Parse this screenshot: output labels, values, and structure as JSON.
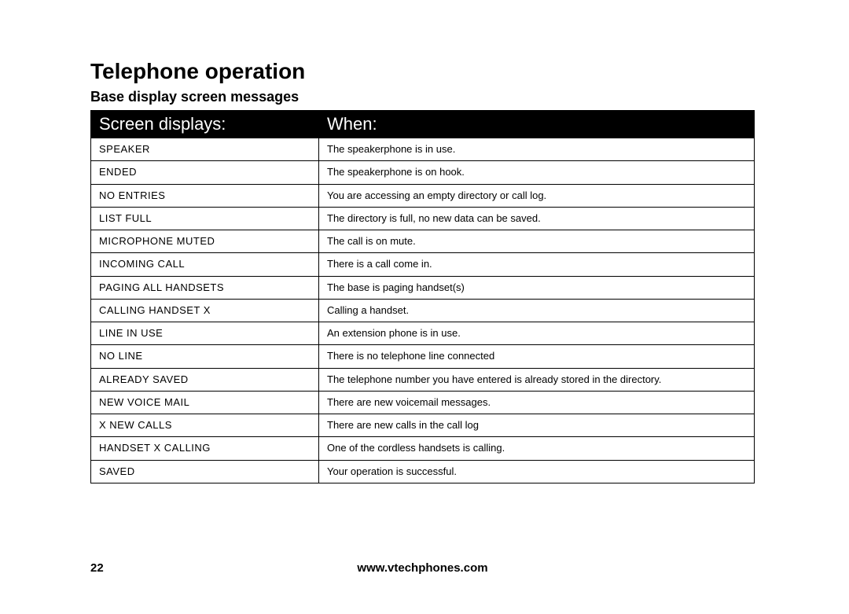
{
  "title": "Telephone operation",
  "subtitle": "Base display screen messages",
  "table": {
    "header": {
      "col1": "Screen displays:",
      "col2": "When:"
    },
    "rows": [
      {
        "c1": "SPEAKER",
        "c2": "The speakerphone is in use."
      },
      {
        "c1": "ENDED",
        "c2": "The speakerphone is on hook."
      },
      {
        "c1": "NO ENTRIES",
        "c2": "You are accessing an empty directory or call log."
      },
      {
        "c1": "LIST FULL",
        "c2": "The directory is full, no new data can be saved."
      },
      {
        "c1": "MICROPHONE MUTED",
        "c2": "The call is on mute."
      },
      {
        "c1": "INCOMING CALL",
        "c2": "There is a call come in."
      },
      {
        "c1": "PAGING ALL HANDSETS",
        "c2": "The base is paging handset(s)"
      },
      {
        "c1": "CALLING HANDSET X",
        "c2": "Calling a handset."
      },
      {
        "c1": "LINE IN USE",
        "c2": "An extension phone is in use."
      },
      {
        "c1": "NO LINE",
        "c2": "There is no telephone line connected"
      },
      {
        "c1": "ALREADY SAVED",
        "c2": "The telephone number you have entered is already stored in the directory."
      },
      {
        "c1": "NEW VOICE MAIL",
        "c2": "There are new voicemail messages."
      },
      {
        "c1": "X NEW CALLS",
        "c2": "There are new calls in the call log"
      },
      {
        "c1": "HANDSET X CALLING",
        "c2": "One of the cordless handsets is calling."
      },
      {
        "c1": "SAVED",
        "c2": "Your operation is successful."
      }
    ]
  },
  "footer": {
    "page": "22",
    "url": "www.vtechphones.com"
  }
}
